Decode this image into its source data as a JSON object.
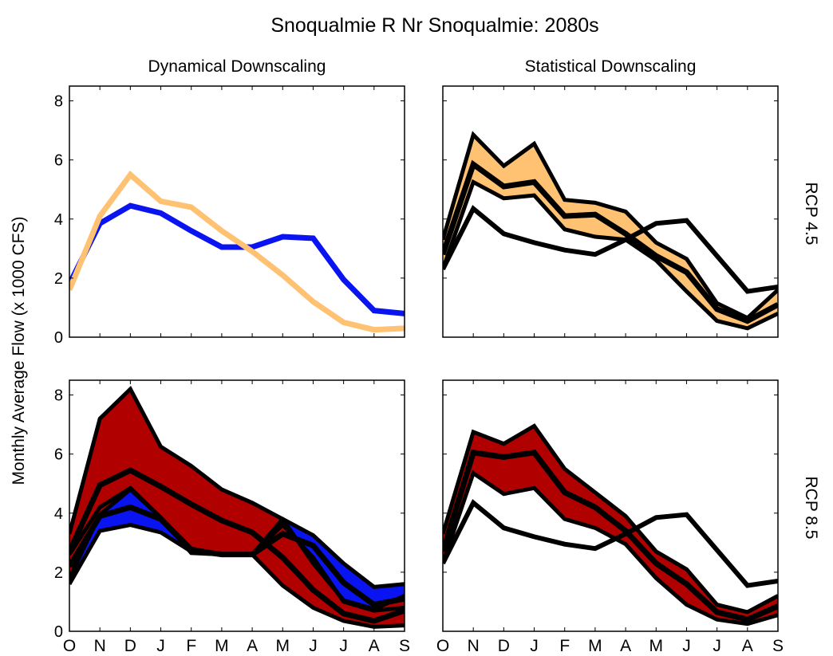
{
  "chart_data": {
    "type": "area",
    "title": "Snoqualmie R Nr Snoqualmie: 2080s",
    "ylabel": "Monthly Average Flow (x 1000 CFS)",
    "xlabel": "",
    "column_titles": [
      "Dynamical Downscaling",
      "Statistical Downscaling"
    ],
    "row_titles": [
      "RCP 4.5",
      "RCP 8.5"
    ],
    "categories": [
      "O",
      "N",
      "D",
      "J",
      "F",
      "M",
      "A",
      "M",
      "J",
      "J",
      "A",
      "S"
    ],
    "ylim": [
      0,
      8.5
    ],
    "yticks": [
      0,
      2,
      4,
      6,
      8
    ],
    "grid": false,
    "colors": {
      "blue": "#0a14f0",
      "orange": "#ffc172",
      "red": "#b00000",
      "line": "#000000"
    },
    "panels": [
      {
        "name": "dynamical-rcp45",
        "row": 0,
        "col": 0,
        "bands": [],
        "lines": [
          {
            "name": "dynamical-historical",
            "color": "blue",
            "values": [
              1.8,
              3.85,
              4.45,
              4.2,
              3.6,
              3.05,
              3.05,
              3.4,
              3.35,
              1.95,
              0.9,
              0.8
            ]
          },
          {
            "name": "dynamical-rcp45",
            "color": "orange",
            "values": [
              1.6,
              4.1,
              5.5,
              4.6,
              4.4,
              3.6,
              2.9,
              2.1,
              1.2,
              0.5,
              0.25,
              0.3
            ]
          }
        ]
      },
      {
        "name": "statistical-rcp45",
        "row": 0,
        "col": 1,
        "bands": [
          {
            "name": "rcp45-range",
            "color": "orange",
            "upper": [
              3.3,
              6.85,
              5.8,
              6.55,
              4.65,
              4.55,
              4.25,
              3.2,
              2.65,
              1.15,
              0.65,
              1.6
            ],
            "lower": [
              2.3,
              5.25,
              4.7,
              4.8,
              3.65,
              3.4,
              3.3,
              2.6,
              1.55,
              0.55,
              0.3,
              0.8
            ]
          }
        ],
        "lines": [
          {
            "name": "rcp45-median",
            "color": "line",
            "values": [
              2.8,
              5.85,
              5.1,
              5.25,
              4.1,
              4.15,
              3.5,
              2.75,
              2.2,
              0.95,
              0.55,
              1.1
            ]
          },
          {
            "name": "historical",
            "color": "line",
            "values": [
              2.3,
              4.35,
              3.5,
              3.2,
              2.95,
              2.8,
              3.3,
              3.85,
              3.95,
              2.75,
              1.55,
              1.7
            ]
          }
        ]
      },
      {
        "name": "dynamical-rcp85",
        "row": 1,
        "col": 0,
        "bands": [
          {
            "name": "historical-range",
            "color": "blue",
            "upper": [
              2.6,
              4.2,
              4.85,
              3.85,
              2.8,
              2.6,
              2.6,
              3.8,
              3.25,
              2.3,
              1.5,
              1.6
            ],
            "median": [
              2.2,
              3.9,
              4.2,
              3.8,
              2.75,
              2.6,
              2.6,
              3.3,
              2.9,
              1.65,
              0.9,
              1.1
            ],
            "lower": [
              1.6,
              3.4,
              3.6,
              3.35,
              2.7,
              2.6,
              2.6,
              3.6,
              2.5,
              1.0,
              0.7,
              0.8
            ]
          },
          {
            "name": "rcp85-range",
            "color": "red",
            "upper": [
              3.3,
              7.2,
              8.2,
              6.25,
              5.6,
              4.8,
              4.35,
              3.8,
              2.3,
              1.05,
              0.75,
              1.2
            ],
            "median": [
              2.7,
              4.95,
              5.45,
              4.9,
              4.3,
              3.75,
              3.35,
              2.5,
              1.4,
              0.6,
              0.35,
              0.7
            ],
            "lower": [
              1.8,
              3.95,
              4.8,
              3.85,
              2.65,
              2.6,
              2.6,
              1.55,
              0.8,
              0.35,
              0.15,
              0.2
            ]
          }
        ],
        "lines": []
      },
      {
        "name": "statistical-rcp85",
        "row": 1,
        "col": 1,
        "bands": [
          {
            "name": "rcp85-range",
            "color": "red",
            "upper": [
              3.3,
              6.75,
              6.35,
              6.95,
              5.5,
              4.7,
              3.9,
              2.7,
              2.1,
              0.9,
              0.65,
              1.2
            ],
            "lower": [
              2.3,
              5.35,
              4.65,
              4.85,
              3.8,
              3.5,
              2.95,
              1.8,
              0.9,
              0.4,
              0.25,
              0.55
            ]
          }
        ],
        "lines": [
          {
            "name": "rcp85-median",
            "color": "line",
            "values": [
              2.7,
              6.05,
              5.9,
              6.05,
              4.7,
              4.2,
              3.4,
              2.3,
              1.6,
              0.65,
              0.4,
              0.85
            ]
          },
          {
            "name": "historical",
            "color": "line",
            "values": [
              2.3,
              4.35,
              3.5,
              3.2,
              2.95,
              2.8,
              3.3,
              3.85,
              3.95,
              2.75,
              1.55,
              1.7
            ]
          }
        ]
      }
    ]
  }
}
